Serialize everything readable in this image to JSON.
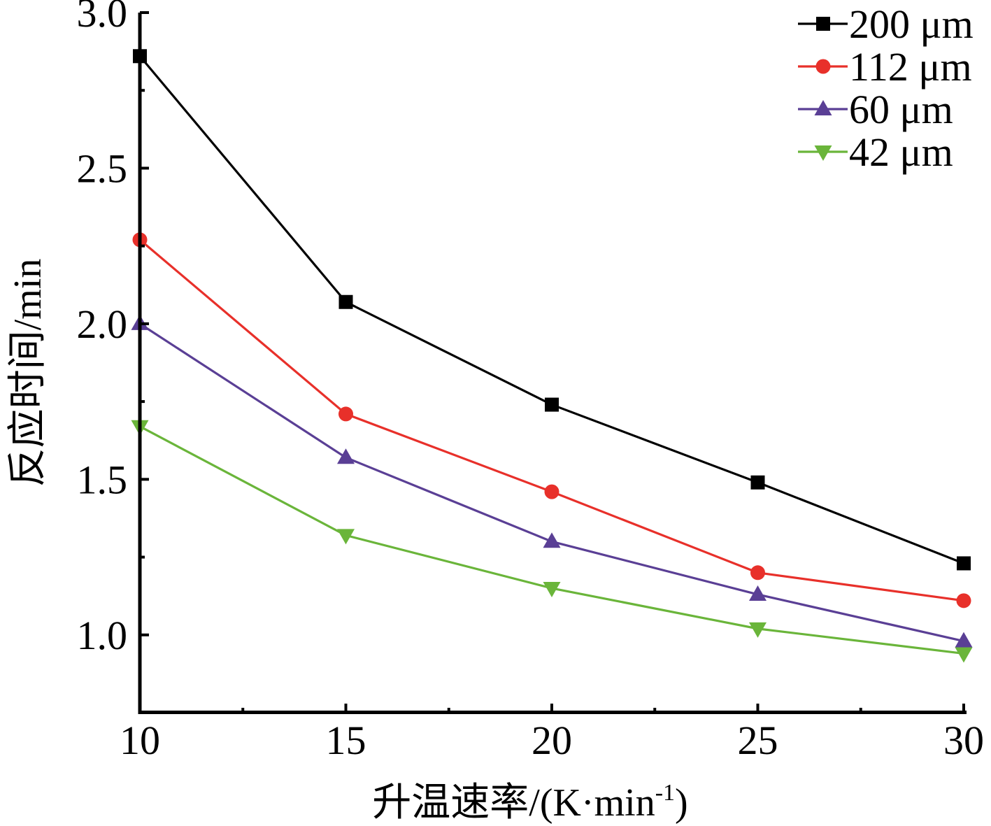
{
  "chart_data": {
    "type": "line",
    "xlabel": "升温速率/(K·min",
    "xlabel_sup": "-1",
    "xlabel_suffix": ")",
    "ylabel": "反应时间/min",
    "xlim": [
      10,
      30
    ],
    "ylim": [
      0.75,
      3.0
    ],
    "x": [
      10,
      15,
      20,
      25,
      30
    ],
    "x_ticks": [
      "10",
      "15",
      "20",
      "25",
      "30"
    ],
    "y_ticks": [
      {
        "value": 1.0,
        "label": "1.0"
      },
      {
        "value": 1.5,
        "label": "1.5"
      },
      {
        "value": 2.0,
        "label": "2.0"
      },
      {
        "value": 2.5,
        "label": "2.5"
      },
      {
        "value": 3.0,
        "label": "3.0"
      }
    ],
    "grid": false,
    "legend_position": "top-right",
    "series": [
      {
        "name": "200 μm",
        "marker": "square",
        "color": "#000000",
        "values": [
          2.86,
          2.07,
          1.74,
          1.49,
          1.23
        ]
      },
      {
        "name": "112 μm",
        "marker": "circle",
        "color": "#e8302a",
        "values": [
          2.27,
          1.71,
          1.46,
          1.2,
          1.11
        ]
      },
      {
        "name": "60 μm",
        "marker": "triangle-up",
        "color": "#5a3f95",
        "values": [
          2.0,
          1.57,
          1.3,
          1.13,
          0.98
        ]
      },
      {
        "name": "42 μm",
        "marker": "triangle-down",
        "color": "#6ab53a",
        "values": [
          1.67,
          1.32,
          1.15,
          1.02,
          0.94
        ]
      }
    ]
  }
}
